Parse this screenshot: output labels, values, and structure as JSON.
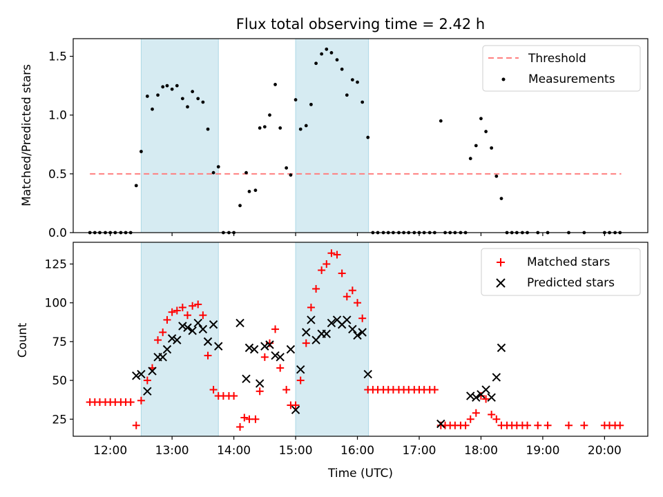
{
  "chart_data": [
    {
      "type": "scatter",
      "title": "Flux total observing time = 2.42 h",
      "xlabel": "",
      "ylabel": "Matched/Predicted stars",
      "xlim": [
        11.4,
        20.7
      ],
      "ylim": [
        0,
        1.65
      ],
      "yticks": [
        0.0,
        0.5,
        1.0,
        1.5
      ],
      "ytick_labels": [
        "0.0",
        "0.5",
        "1.0",
        "1.5"
      ],
      "shaded_intervals": [
        [
          12.5,
          13.75
        ],
        [
          15.0,
          16.18
        ]
      ],
      "threshold": {
        "name": "Threshold",
        "value": 0.5,
        "x_range": [
          11.67,
          20.27
        ],
        "color": "#ff7f7f"
      },
      "series": [
        {
          "name": "Measurements",
          "color": "#000000",
          "marker": "dot",
          "points": [
            [
              11.67,
              0
            ],
            [
              11.75,
              0
            ],
            [
              11.83,
              0
            ],
            [
              11.92,
              0
            ],
            [
              12.0,
              0
            ],
            [
              12.08,
              0
            ],
            [
              12.17,
              0
            ],
            [
              12.25,
              0
            ],
            [
              12.33,
              0
            ],
            [
              12.42,
              0.4
            ],
            [
              12.5,
              0.69
            ],
            [
              12.6,
              1.16
            ],
            [
              12.68,
              1.05
            ],
            [
              12.77,
              1.17
            ],
            [
              12.85,
              1.24
            ],
            [
              12.92,
              1.25
            ],
            [
              13.0,
              1.22
            ],
            [
              13.08,
              1.25
            ],
            [
              13.17,
              1.14
            ],
            [
              13.25,
              1.07
            ],
            [
              13.33,
              1.2
            ],
            [
              13.42,
              1.14
            ],
            [
              13.5,
              1.11
            ],
            [
              13.58,
              0.88
            ],
            [
              13.67,
              0.51
            ],
            [
              13.75,
              0.56
            ],
            [
              13.83,
              0
            ],
            [
              13.92,
              0
            ],
            [
              14.0,
              0
            ],
            [
              14.1,
              0.23
            ],
            [
              14.2,
              0.51
            ],
            [
              14.25,
              0.35
            ],
            [
              14.35,
              0.36
            ],
            [
              14.42,
              0.89
            ],
            [
              14.5,
              0.9
            ],
            [
              14.58,
              1.0
            ],
            [
              14.67,
              1.26
            ],
            [
              14.75,
              0.89
            ],
            [
              14.85,
              0.55
            ],
            [
              14.92,
              0.49
            ],
            [
              15.0,
              1.13
            ],
            [
              15.08,
              0.88
            ],
            [
              15.17,
              0.91
            ],
            [
              15.25,
              1.09
            ],
            [
              15.33,
              1.44
            ],
            [
              15.42,
              1.52
            ],
            [
              15.5,
              1.56
            ],
            [
              15.58,
              1.53
            ],
            [
              15.67,
              1.47
            ],
            [
              15.75,
              1.39
            ],
            [
              15.83,
              1.17
            ],
            [
              15.92,
              1.3
            ],
            [
              16.0,
              1.28
            ],
            [
              16.08,
              1.11
            ],
            [
              16.17,
              0.81
            ],
            [
              16.25,
              0
            ],
            [
              16.33,
              0
            ],
            [
              16.42,
              0
            ],
            [
              16.5,
              0
            ],
            [
              16.58,
              0
            ],
            [
              16.67,
              0
            ],
            [
              16.75,
              0
            ],
            [
              16.83,
              0
            ],
            [
              16.92,
              0
            ],
            [
              17.0,
              0
            ],
            [
              17.08,
              0
            ],
            [
              17.17,
              0
            ],
            [
              17.25,
              0
            ],
            [
              17.35,
              0.95
            ],
            [
              17.42,
              0
            ],
            [
              17.5,
              0
            ],
            [
              17.58,
              0
            ],
            [
              17.67,
              0
            ],
            [
              17.75,
              0
            ],
            [
              17.83,
              0.63
            ],
            [
              17.92,
              0.74
            ],
            [
              18.0,
              0.97
            ],
            [
              18.08,
              0.86
            ],
            [
              18.17,
              0.72
            ],
            [
              18.25,
              0.48
            ],
            [
              18.33,
              0.29
            ],
            [
              18.42,
              0
            ],
            [
              18.5,
              0
            ],
            [
              18.58,
              0
            ],
            [
              18.67,
              0
            ],
            [
              18.75,
              0
            ],
            [
              18.92,
              0
            ],
            [
              19.08,
              0
            ],
            [
              19.42,
              0
            ],
            [
              19.67,
              0
            ],
            [
              20.0,
              0
            ],
            [
              20.08,
              0
            ],
            [
              20.17,
              0
            ],
            [
              20.25,
              0
            ]
          ]
        }
      ],
      "legend": {
        "position": "top-right",
        "entries": [
          "Threshold",
          "Measurements"
        ]
      }
    },
    {
      "type": "scatter",
      "title": "",
      "xlabel": "Time (UTC)",
      "ylabel": "Count",
      "xlim": [
        11.4,
        20.7
      ],
      "ylim": [
        14,
        139
      ],
      "xticks": [
        12,
        13,
        14,
        15,
        16,
        17,
        18,
        19,
        20
      ],
      "xtick_labels": [
        "12:00",
        "13:00",
        "14:00",
        "15:00",
        "16:00",
        "17:00",
        "18:00",
        "19:00",
        "20:00"
      ],
      "yticks": [
        25,
        50,
        75,
        100,
        125
      ],
      "ytick_labels": [
        "25",
        "50",
        "75",
        "100",
        "125"
      ],
      "shaded_intervals": [
        [
          12.5,
          13.75
        ],
        [
          15.0,
          16.18
        ]
      ],
      "series": [
        {
          "name": "Matched stars",
          "color": "#ff0000",
          "marker": "plus",
          "points": [
            [
              11.67,
              36
            ],
            [
              11.75,
              36
            ],
            [
              11.83,
              36
            ],
            [
              11.92,
              36
            ],
            [
              12.0,
              36
            ],
            [
              12.08,
              36
            ],
            [
              12.17,
              36
            ],
            [
              12.25,
              36
            ],
            [
              12.33,
              36
            ],
            [
              12.42,
              21
            ],
            [
              12.5,
              37
            ],
            [
              12.6,
              50
            ],
            [
              12.68,
              58
            ],
            [
              12.77,
              76
            ],
            [
              12.85,
              81
            ],
            [
              12.92,
              89
            ],
            [
              13.0,
              94
            ],
            [
              13.08,
              95
            ],
            [
              13.17,
              97
            ],
            [
              13.25,
              92
            ],
            [
              13.33,
              98
            ],
            [
              13.42,
              99
            ],
            [
              13.5,
              92
            ],
            [
              13.58,
              66
            ],
            [
              13.67,
              44
            ],
            [
              13.75,
              40
            ],
            [
              13.83,
              40
            ],
            [
              13.92,
              40
            ],
            [
              14.0,
              40
            ],
            [
              14.1,
              20
            ],
            [
              14.17,
              26
            ],
            [
              14.25,
              25
            ],
            [
              14.35,
              25
            ],
            [
              14.42,
              43
            ],
            [
              14.5,
              65
            ],
            [
              14.58,
              74
            ],
            [
              14.67,
              83
            ],
            [
              14.75,
              58
            ],
            [
              14.85,
              44
            ],
            [
              14.92,
              34
            ],
            [
              15.0,
              34
            ],
            [
              15.08,
              50
            ],
            [
              15.17,
              74
            ],
            [
              15.25,
              97
            ],
            [
              15.33,
              109
            ],
            [
              15.42,
              121
            ],
            [
              15.5,
              125
            ],
            [
              15.58,
              132
            ],
            [
              15.67,
              131
            ],
            [
              15.75,
              119
            ],
            [
              15.83,
              104
            ],
            [
              15.92,
              108
            ],
            [
              16.0,
              100
            ],
            [
              16.08,
              90
            ],
            [
              16.17,
              44
            ],
            [
              16.25,
              44
            ],
            [
              16.33,
              44
            ],
            [
              16.42,
              44
            ],
            [
              16.5,
              44
            ],
            [
              16.58,
              44
            ],
            [
              16.67,
              44
            ],
            [
              16.75,
              44
            ],
            [
              16.83,
              44
            ],
            [
              16.92,
              44
            ],
            [
              17.0,
              44
            ],
            [
              17.08,
              44
            ],
            [
              17.17,
              44
            ],
            [
              17.25,
              44
            ],
            [
              17.35,
              21
            ],
            [
              17.42,
              21
            ],
            [
              17.5,
              21
            ],
            [
              17.58,
              21
            ],
            [
              17.67,
              21
            ],
            [
              17.75,
              21
            ],
            [
              17.83,
              25
            ],
            [
              17.92,
              29
            ],
            [
              18.0,
              40
            ],
            [
              18.08,
              38
            ],
            [
              18.17,
              28
            ],
            [
              18.25,
              25
            ],
            [
              18.33,
              21
            ],
            [
              18.42,
              21
            ],
            [
              18.5,
              21
            ],
            [
              18.58,
              21
            ],
            [
              18.67,
              21
            ],
            [
              18.75,
              21
            ],
            [
              18.92,
              21
            ],
            [
              19.08,
              21
            ],
            [
              19.42,
              21
            ],
            [
              19.67,
              21
            ],
            [
              20.0,
              21
            ],
            [
              20.08,
              21
            ],
            [
              20.17,
              21
            ],
            [
              20.25,
              21
            ]
          ]
        },
        {
          "name": "Predicted stars",
          "color": "#000000",
          "marker": "x",
          "points": [
            [
              12.42,
              53
            ],
            [
              12.5,
              54
            ],
            [
              12.6,
              43
            ],
            [
              12.68,
              56
            ],
            [
              12.77,
              65
            ],
            [
              12.85,
              65
            ],
            [
              12.92,
              70
            ],
            [
              13.0,
              77
            ],
            [
              13.08,
              76
            ],
            [
              13.17,
              85
            ],
            [
              13.25,
              84
            ],
            [
              13.33,
              82
            ],
            [
              13.42,
              87
            ],
            [
              13.5,
              83
            ],
            [
              13.58,
              75
            ],
            [
              13.67,
              86
            ],
            [
              13.75,
              72
            ],
            [
              14.1,
              87
            ],
            [
              14.2,
              51
            ],
            [
              14.25,
              71
            ],
            [
              14.33,
              70
            ],
            [
              14.42,
              48
            ],
            [
              14.5,
              72
            ],
            [
              14.58,
              73
            ],
            [
              14.67,
              66
            ],
            [
              14.75,
              65
            ],
            [
              14.92,
              70
            ],
            [
              15.0,
              31
            ],
            [
              15.08,
              57
            ],
            [
              15.17,
              81
            ],
            [
              15.25,
              89
            ],
            [
              15.33,
              76
            ],
            [
              15.42,
              80
            ],
            [
              15.5,
              80
            ],
            [
              15.58,
              87
            ],
            [
              15.67,
              89
            ],
            [
              15.75,
              86
            ],
            [
              15.83,
              89
            ],
            [
              15.92,
              83
            ],
            [
              16.0,
              79
            ],
            [
              16.08,
              81
            ],
            [
              16.17,
              54
            ],
            [
              17.35,
              22
            ],
            [
              17.83,
              40
            ],
            [
              17.92,
              39
            ],
            [
              18.0,
              41
            ],
            [
              18.08,
              44
            ],
            [
              18.17,
              39
            ],
            [
              18.25,
              52
            ],
            [
              18.33,
              71
            ]
          ]
        }
      ],
      "legend": {
        "position": "top-right",
        "entries": [
          "Matched stars",
          "Predicted stars"
        ]
      }
    }
  ]
}
